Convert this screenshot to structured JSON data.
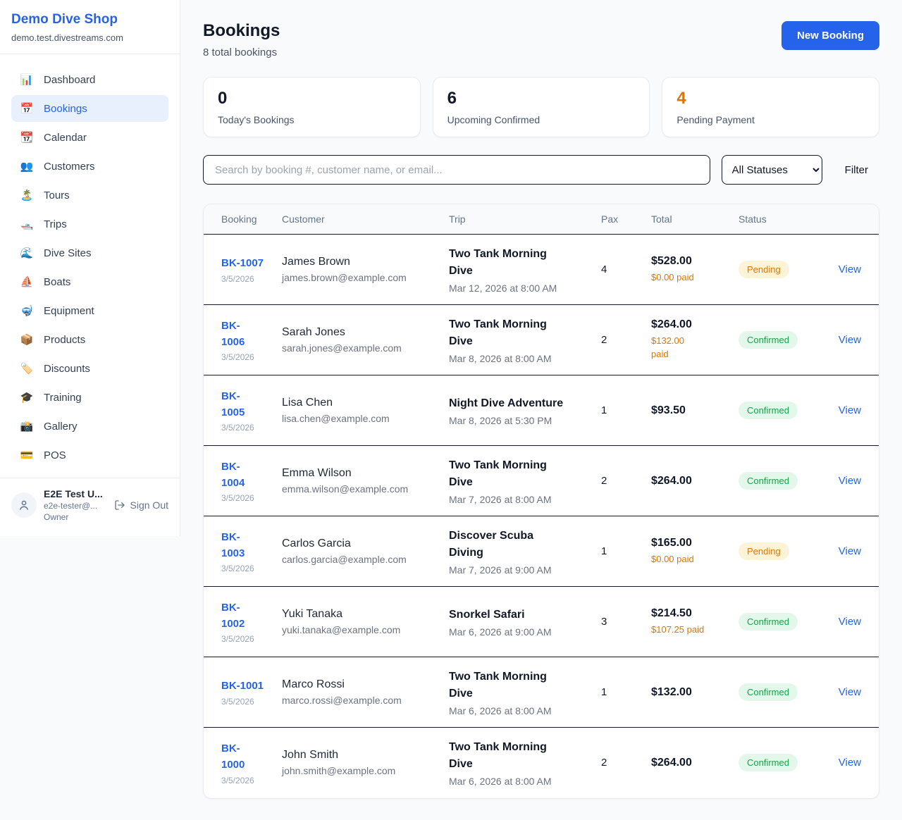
{
  "colors": {
    "accent": "#2563eb",
    "orange": "#d97706",
    "pending_bg": "#fdf3d7",
    "confirmed_bg": "#e3f7ea",
    "confirmed_text": "#16a34a"
  },
  "sidebar": {
    "brand": {
      "name": "Demo Dive Shop",
      "domain": "demo.test.divestreams.com"
    },
    "nav": [
      {
        "icon": "📊",
        "icon_name": "bar-chart-icon",
        "label": "Dashboard",
        "active": false
      },
      {
        "icon": "📅",
        "icon_name": "calendar-icon",
        "label": "Bookings",
        "active": true
      },
      {
        "icon": "📆",
        "icon_name": "tear-off-calendar-icon",
        "label": "Calendar",
        "active": false
      },
      {
        "icon": "👥",
        "icon_name": "users-icon",
        "label": "Customers",
        "active": false
      },
      {
        "icon": "🏝️",
        "icon_name": "island-icon",
        "label": "Tours",
        "active": false
      },
      {
        "icon": "🛥️",
        "icon_name": "motorboat-icon",
        "label": "Trips",
        "active": false
      },
      {
        "icon": "🌊",
        "icon_name": "wave-icon",
        "label": "Dive Sites",
        "active": false
      },
      {
        "icon": "⛵",
        "icon_name": "sailboat-icon",
        "label": "Boats",
        "active": false
      },
      {
        "icon": "🤿",
        "icon_name": "diving-mask-icon",
        "label": "Equipment",
        "active": false
      },
      {
        "icon": "📦",
        "icon_name": "package-icon",
        "label": "Products",
        "active": false
      },
      {
        "icon": "🏷️",
        "icon_name": "tag-icon",
        "label": "Discounts",
        "active": false
      },
      {
        "icon": "🎓",
        "icon_name": "graduation-cap-icon",
        "label": "Training",
        "active": false
      },
      {
        "icon": "📸",
        "icon_name": "camera-icon",
        "label": "Gallery",
        "active": false
      },
      {
        "icon": "💳",
        "icon_name": "credit-card-icon",
        "label": "POS",
        "active": false
      }
    ],
    "user": {
      "name": "E2E Test U...",
      "email": "e2e-tester@...",
      "role": "Owner",
      "sign_out_label": "Sign Out"
    }
  },
  "header": {
    "title": "Bookings",
    "subtitle": "8 total bookings",
    "new_booking_label": "New Booking"
  },
  "stats": [
    {
      "value": "0",
      "label": "Today's Bookings",
      "accent": false
    },
    {
      "value": "6",
      "label": "Upcoming Confirmed",
      "accent": false
    },
    {
      "value": "4",
      "label": "Pending Payment",
      "accent": true
    }
  ],
  "controls": {
    "search_placeholder": "Search by booking #, customer name, or email...",
    "status_filter_value": "All Statuses",
    "filter_label": "Filter"
  },
  "table": {
    "columns": [
      "Booking",
      "Customer",
      "Trip",
      "Pax",
      "Total",
      "Status"
    ],
    "view_label": "View",
    "rows": [
      {
        "booking_id": "BK-1007",
        "booking_date": "3/5/2026",
        "customer_name": "James Brown",
        "customer_email": "james.brown@example.com",
        "trip_name": "Two Tank Morning\nDive",
        "trip_datetime": "Mar 12, 2026 at 8:00 AM",
        "pax": "4",
        "total": "$528.00",
        "paid": "$0.00 paid",
        "status": "Pending"
      },
      {
        "booking_id": "BK-\n1006",
        "booking_date": "3/5/2026",
        "customer_name": "Sarah Jones",
        "customer_email": "sarah.jones@example.com",
        "trip_name": "Two Tank Morning\nDive",
        "trip_datetime": "Mar 8, 2026 at 8:00 AM",
        "pax": "2",
        "total": "$264.00",
        "paid": "$132.00\npaid",
        "status": "Confirmed"
      },
      {
        "booking_id": "BK-\n1005",
        "booking_date": "3/5/2026",
        "customer_name": "Lisa Chen",
        "customer_email": "lisa.chen@example.com",
        "trip_name": "Night Dive Adventure",
        "trip_datetime": "Mar 8, 2026 at 5:30 PM",
        "pax": "1",
        "total": "$93.50",
        "paid": null,
        "status": "Confirmed"
      },
      {
        "booking_id": "BK-\n1004",
        "booking_date": "3/5/2026",
        "customer_name": "Emma Wilson",
        "customer_email": "emma.wilson@example.com",
        "trip_name": "Two Tank Morning\nDive",
        "trip_datetime": "Mar 7, 2026 at 8:00 AM",
        "pax": "2",
        "total": "$264.00",
        "paid": null,
        "status": "Confirmed"
      },
      {
        "booking_id": "BK-\n1003",
        "booking_date": "3/5/2026",
        "customer_name": "Carlos Garcia",
        "customer_email": "carlos.garcia@example.com",
        "trip_name": "Discover Scuba\nDiving",
        "trip_datetime": "Mar 7, 2026 at 9:00 AM",
        "pax": "1",
        "total": "$165.00",
        "paid": "$0.00 paid",
        "status": "Pending"
      },
      {
        "booking_id": "BK-\n1002",
        "booking_date": "3/5/2026",
        "customer_name": "Yuki Tanaka",
        "customer_email": "yuki.tanaka@example.com",
        "trip_name": "Snorkel Safari",
        "trip_datetime": "Mar 6, 2026 at 9:00 AM",
        "pax": "3",
        "total": "$214.50",
        "paid": "$107.25 paid",
        "status": "Confirmed"
      },
      {
        "booking_id": "BK-1001",
        "booking_date": "3/5/2026",
        "customer_name": "Marco Rossi",
        "customer_email": "marco.rossi@example.com",
        "trip_name": "Two Tank Morning\nDive",
        "trip_datetime": "Mar 6, 2026 at 8:00 AM",
        "pax": "1",
        "total": "$132.00",
        "paid": null,
        "status": "Confirmed"
      },
      {
        "booking_id": "BK-\n1000",
        "booking_date": "3/5/2026",
        "customer_name": "John Smith",
        "customer_email": "john.smith@example.com",
        "trip_name": "Two Tank Morning\nDive",
        "trip_datetime": "Mar 6, 2026 at 8:00 AM",
        "pax": "2",
        "total": "$264.00",
        "paid": null,
        "status": "Confirmed"
      }
    ]
  }
}
